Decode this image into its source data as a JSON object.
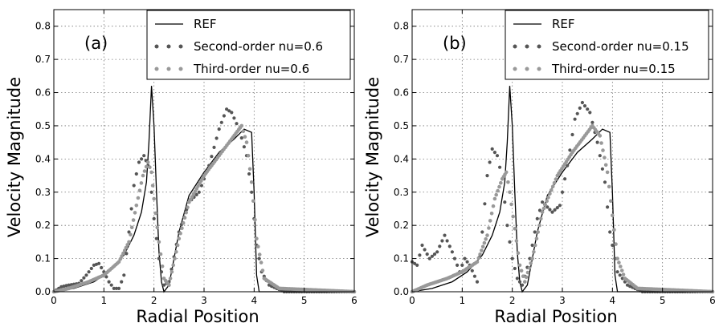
{
  "chart_data": [
    {
      "type": "scatter",
      "panel_label": "(a)",
      "xlabel": "Radial Position",
      "ylabel": "Velocity Magnitude",
      "xlim": [
        0,
        6
      ],
      "ylim": [
        0,
        0.85
      ],
      "xticks": [
        "0",
        "1",
        "2",
        "3",
        "4",
        "5",
        "6"
      ],
      "yticks": [
        "0.0",
        "0.1",
        "0.2",
        "0.3",
        "0.4",
        "0.5",
        "0.6",
        "0.7",
        "0.8"
      ],
      "grid": true,
      "legend_position": "top-right",
      "series": [
        {
          "name": "REF",
          "style": "line",
          "color": "#000000",
          "points": [
            [
              0,
              0.0
            ],
            [
              0.4,
              0.01
            ],
            [
              0.8,
              0.03
            ],
            [
              1.1,
              0.06
            ],
            [
              1.4,
              0.11
            ],
            [
              1.6,
              0.17
            ],
            [
              1.75,
              0.24
            ],
            [
              1.85,
              0.33
            ],
            [
              1.9,
              0.45
            ],
            [
              1.95,
              0.62
            ],
            [
              2.0,
              0.5
            ],
            [
              2.05,
              0.3
            ],
            [
              2.1,
              0.12
            ],
            [
              2.15,
              0.03
            ],
            [
              2.2,
              0.0
            ],
            [
              2.3,
              0.02
            ],
            [
              2.5,
              0.18
            ],
            [
              2.7,
              0.29
            ],
            [
              3.0,
              0.36
            ],
            [
              3.3,
              0.42
            ],
            [
              3.6,
              0.46
            ],
            [
              3.8,
              0.49
            ],
            [
              3.95,
              0.48
            ],
            [
              4.0,
              0.3
            ],
            [
              4.05,
              0.05
            ],
            [
              4.1,
              0.0
            ],
            [
              6.0,
              0.0
            ]
          ]
        },
        {
          "name": "Second-order nu=0.6",
          "style": "dots",
          "color": "#555555",
          "points": [
            [
              0,
              0.0
            ],
            [
              0.15,
              0.015
            ],
            [
              0.3,
              0.02
            ],
            [
              0.5,
              0.025
            ],
            [
              0.65,
              0.05
            ],
            [
              0.8,
              0.08
            ],
            [
              0.9,
              0.085
            ],
            [
              1.0,
              0.06
            ],
            [
              1.1,
              0.03
            ],
            [
              1.2,
              0.01
            ],
            [
              1.3,
              0.01
            ],
            [
              1.4,
              0.05
            ],
            [
              1.5,
              0.18
            ],
            [
              1.6,
              0.32
            ],
            [
              1.7,
              0.39
            ],
            [
              1.8,
              0.41
            ],
            [
              1.88,
              0.38
            ],
            [
              1.95,
              0.3
            ],
            [
              2.0,
              0.22
            ],
            [
              2.1,
              0.1
            ],
            [
              2.2,
              0.02
            ],
            [
              2.3,
              0.03
            ],
            [
              2.5,
              0.18
            ],
            [
              2.7,
              0.27
            ],
            [
              2.9,
              0.3
            ],
            [
              3.1,
              0.38
            ],
            [
              3.3,
              0.49
            ],
            [
              3.45,
              0.55
            ],
            [
              3.55,
              0.54
            ],
            [
              3.7,
              0.49
            ],
            [
              3.85,
              0.41
            ],
            [
              3.95,
              0.3
            ],
            [
              4.05,
              0.14
            ],
            [
              4.15,
              0.06
            ],
            [
              4.3,
              0.02
            ],
            [
              4.6,
              0.0
            ],
            [
              6.0,
              0.0
            ]
          ]
        },
        {
          "name": "Third-order nu=0.6",
          "style": "dots",
          "color": "#999999",
          "points": [
            [
              0,
              0.0
            ],
            [
              0.3,
              0.01
            ],
            [
              0.7,
              0.03
            ],
            [
              1.0,
              0.05
            ],
            [
              1.3,
              0.09
            ],
            [
              1.5,
              0.15
            ],
            [
              1.65,
              0.26
            ],
            [
              1.78,
              0.35
            ],
            [
              1.88,
              0.39
            ],
            [
              1.95,
              0.36
            ],
            [
              2.0,
              0.28
            ],
            [
              2.1,
              0.15
            ],
            [
              2.2,
              0.04
            ],
            [
              2.3,
              0.02
            ],
            [
              2.5,
              0.16
            ],
            [
              2.7,
              0.27
            ],
            [
              3.0,
              0.35
            ],
            [
              3.3,
              0.41
            ],
            [
              3.55,
              0.46
            ],
            [
              3.75,
              0.5
            ],
            [
              3.85,
              0.45
            ],
            [
              3.95,
              0.33
            ],
            [
              4.05,
              0.16
            ],
            [
              4.2,
              0.04
            ],
            [
              4.5,
              0.01
            ],
            [
              6.0,
              0.0
            ]
          ]
        }
      ]
    },
    {
      "type": "scatter",
      "panel_label": "(b)",
      "xlabel": "Radial Position",
      "ylabel": "Velocity Magnitude",
      "xlim": [
        0,
        6
      ],
      "ylim": [
        0,
        0.85
      ],
      "xticks": [
        "0",
        "1",
        "2",
        "3",
        "4",
        "5",
        "6"
      ],
      "yticks": [
        "0.0",
        "0.1",
        "0.2",
        "0.3",
        "0.4",
        "0.5",
        "0.6",
        "0.7",
        "0.8"
      ],
      "grid": true,
      "legend_position": "top-right",
      "series": [
        {
          "name": "REF",
          "style": "line",
          "color": "#000000",
          "points": [
            [
              0,
              0.0
            ],
            [
              0.4,
              0.01
            ],
            [
              0.8,
              0.03
            ],
            [
              1.1,
              0.06
            ],
            [
              1.4,
              0.11
            ],
            [
              1.6,
              0.17
            ],
            [
              1.75,
              0.24
            ],
            [
              1.85,
              0.33
            ],
            [
              1.9,
              0.45
            ],
            [
              1.95,
              0.62
            ],
            [
              2.0,
              0.5
            ],
            [
              2.05,
              0.3
            ],
            [
              2.1,
              0.12
            ],
            [
              2.15,
              0.03
            ],
            [
              2.2,
              0.0
            ],
            [
              2.3,
              0.02
            ],
            [
              2.5,
              0.18
            ],
            [
              2.7,
              0.29
            ],
            [
              3.0,
              0.36
            ],
            [
              3.3,
              0.42
            ],
            [
              3.6,
              0.46
            ],
            [
              3.8,
              0.49
            ],
            [
              3.95,
              0.48
            ],
            [
              4.0,
              0.3
            ],
            [
              4.05,
              0.05
            ],
            [
              4.1,
              0.0
            ],
            [
              6.0,
              0.0
            ]
          ]
        },
        {
          "name": "Second-order nu=0.15",
          "style": "dots",
          "color": "#555555",
          "points": [
            [
              0,
              0.09
            ],
            [
              0.1,
              0.08
            ],
            [
              0.2,
              0.14
            ],
            [
              0.35,
              0.1
            ],
            [
              0.5,
              0.12
            ],
            [
              0.65,
              0.17
            ],
            [
              0.8,
              0.12
            ],
            [
              0.95,
              0.06
            ],
            [
              1.05,
              0.1
            ],
            [
              1.15,
              0.08
            ],
            [
              1.3,
              0.03
            ],
            [
              1.4,
              0.18
            ],
            [
              1.5,
              0.35
            ],
            [
              1.6,
              0.43
            ],
            [
              1.7,
              0.41
            ],
            [
              1.8,
              0.34
            ],
            [
              1.9,
              0.2
            ],
            [
              2.0,
              0.1
            ],
            [
              2.1,
              0.04
            ],
            [
              2.2,
              0.02
            ],
            [
              2.35,
              0.1
            ],
            [
              2.5,
              0.22
            ],
            [
              2.6,
              0.27
            ],
            [
              2.8,
              0.24
            ],
            [
              2.95,
              0.26
            ],
            [
              3.1,
              0.38
            ],
            [
              3.25,
              0.52
            ],
            [
              3.4,
              0.57
            ],
            [
              3.55,
              0.54
            ],
            [
              3.7,
              0.45
            ],
            [
              3.85,
              0.33
            ],
            [
              3.95,
              0.18
            ],
            [
              4.1,
              0.06
            ],
            [
              4.3,
              0.02
            ],
            [
              4.6,
              0.0
            ],
            [
              6.0,
              0.0
            ]
          ]
        },
        {
          "name": "Third-order nu=0.15",
          "style": "dots",
          "color": "#999999",
          "points": [
            [
              0,
              0.0
            ],
            [
              0.3,
              0.02
            ],
            [
              0.7,
              0.04
            ],
            [
              1.0,
              0.06
            ],
            [
              1.3,
              0.09
            ],
            [
              1.5,
              0.17
            ],
            [
              1.65,
              0.28
            ],
            [
              1.8,
              0.34
            ],
            [
              1.88,
              0.36
            ],
            [
              1.95,
              0.3
            ],
            [
              2.05,
              0.19
            ],
            [
              2.15,
              0.08
            ],
            [
              2.25,
              0.03
            ],
            [
              2.4,
              0.1
            ],
            [
              2.6,
              0.24
            ],
            [
              2.9,
              0.35
            ],
            [
              3.2,
              0.42
            ],
            [
              3.45,
              0.47
            ],
            [
              3.6,
              0.5
            ],
            [
              3.75,
              0.47
            ],
            [
              3.9,
              0.36
            ],
            [
              4.0,
              0.23
            ],
            [
              4.1,
              0.1
            ],
            [
              4.25,
              0.04
            ],
            [
              4.5,
              0.01
            ],
            [
              6.0,
              0.0
            ]
          ]
        }
      ]
    }
  ]
}
